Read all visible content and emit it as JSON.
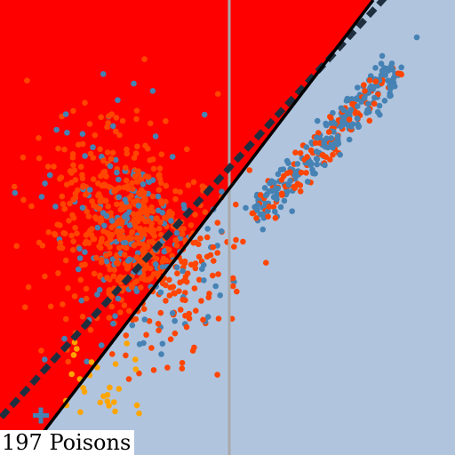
{
  "caption": "197 Poisons",
  "colors": {
    "background_region": "#b0c4de",
    "poison_region": "#ff0000",
    "blue_points": "#4682b4",
    "orange_points": "#ff4500",
    "gold_points": "#ffa500",
    "vertical_line": "#a9a9a9",
    "solid_boundary": "#000000",
    "dashed_boundary": "#1f2f3f"
  },
  "icons": {
    "cross_marker": "plus-icon"
  }
}
